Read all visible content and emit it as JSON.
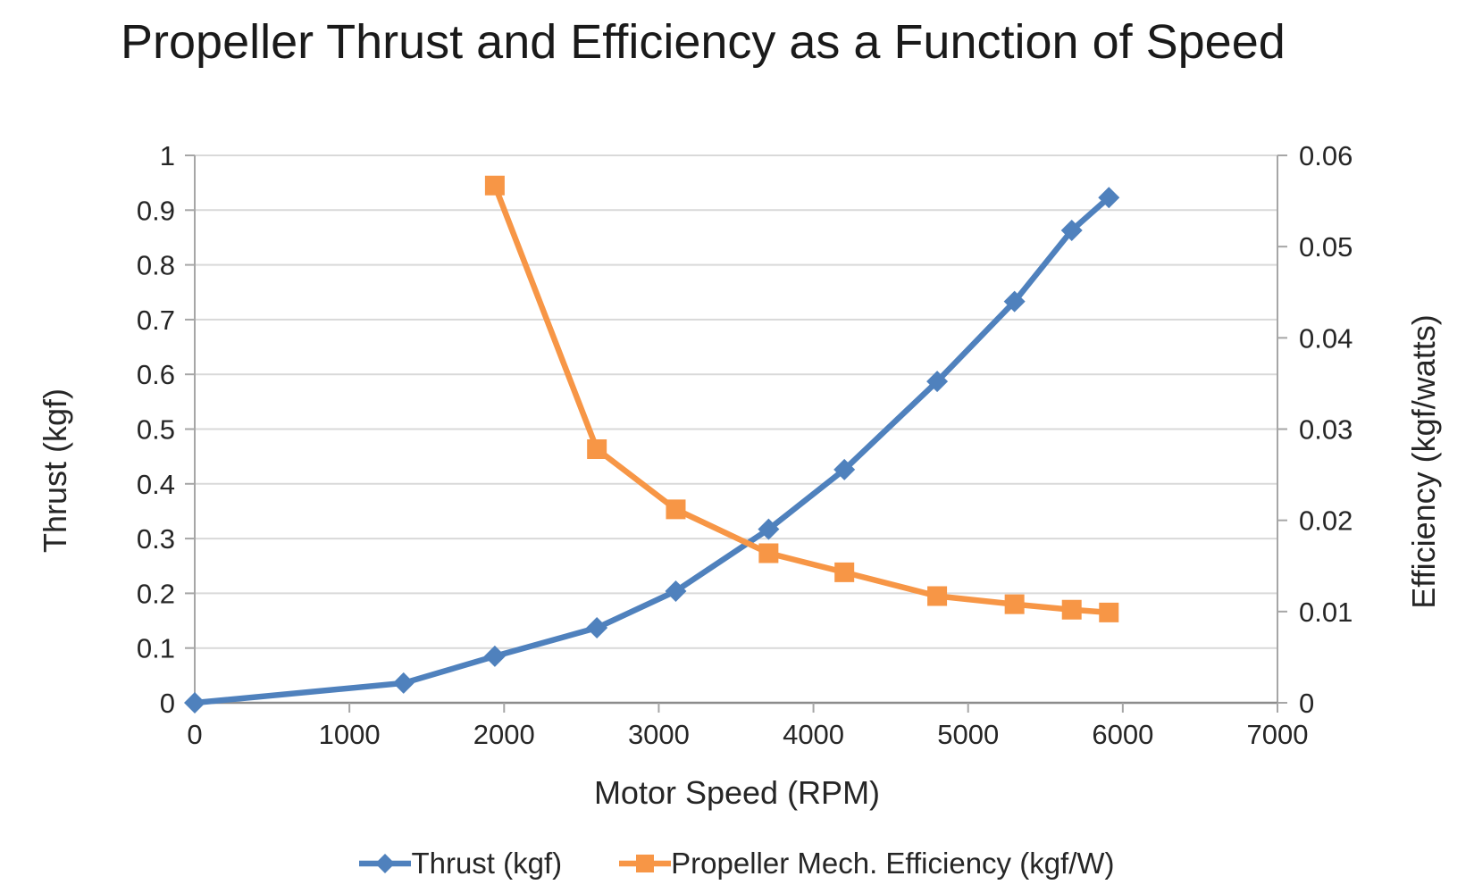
{
  "title": "Propeller Thrust and Efficiency as a Function of Speed",
  "chart_data": {
    "type": "line",
    "title": "Propeller Thrust and Efficiency as a Function of Speed",
    "xlabel": "Motor Speed (RPM)",
    "ylabel_left": "Thrust (kgf)",
    "ylabel_right": "Efficiency (kgf/watts)",
    "xlim": [
      0,
      7000
    ],
    "ylim_left": [
      0,
      1
    ],
    "ylim_right": [
      0,
      0.06
    ],
    "x_tick_labels": [
      "0",
      "1000",
      "2000",
      "3000",
      "4000",
      "5000",
      "6000",
      "7000"
    ],
    "y_tick_labels_left": [
      "0",
      "0.1",
      "0.2",
      "0.3",
      "0.4",
      "0.5",
      "0.6",
      "0.7",
      "0.8",
      "0.9",
      "1"
    ],
    "y_tick_labels_right": [
      "0",
      "0.01",
      "0.02",
      "0.03",
      "0.04",
      "0.05",
      "0.06"
    ],
    "grid": "horizontal-on",
    "legend_position": "bottom",
    "series": [
      {
        "name": "Thrust (kgf)",
        "axis": "left",
        "color": "#4F81BD",
        "marker": "diamond",
        "x": [
          0,
          1350,
          1940,
          2600,
          3110,
          3710,
          4200,
          4800,
          5300,
          5670,
          5910
        ],
        "y": [
          0,
          0.036,
          0.085,
          0.137,
          0.204,
          0.317,
          0.426,
          0.587,
          0.733,
          0.863,
          0.923
        ]
      },
      {
        "name": "Propeller Mech. Efficiency (kgf/W)",
        "axis": "right",
        "color": "#F79646",
        "marker": "square",
        "x": [
          1940,
          2600,
          3110,
          3710,
          4200,
          4800,
          5300,
          5670,
          5910
        ],
        "y": [
          0.0567,
          0.0278,
          0.0212,
          0.0164,
          0.0143,
          0.0117,
          0.0108,
          0.0102,
          0.0099
        ]
      }
    ]
  },
  "colors": {
    "thrust_series": "#4F81BD",
    "efficiency_series": "#F79646",
    "gridline": "#D9D9D9",
    "axis_line": "#A6A6A6",
    "axis_line_bottom": "#8C8C8C",
    "tick_text": "#262626",
    "title_text": "#1a1a1a",
    "background": "#FFFFFF"
  }
}
